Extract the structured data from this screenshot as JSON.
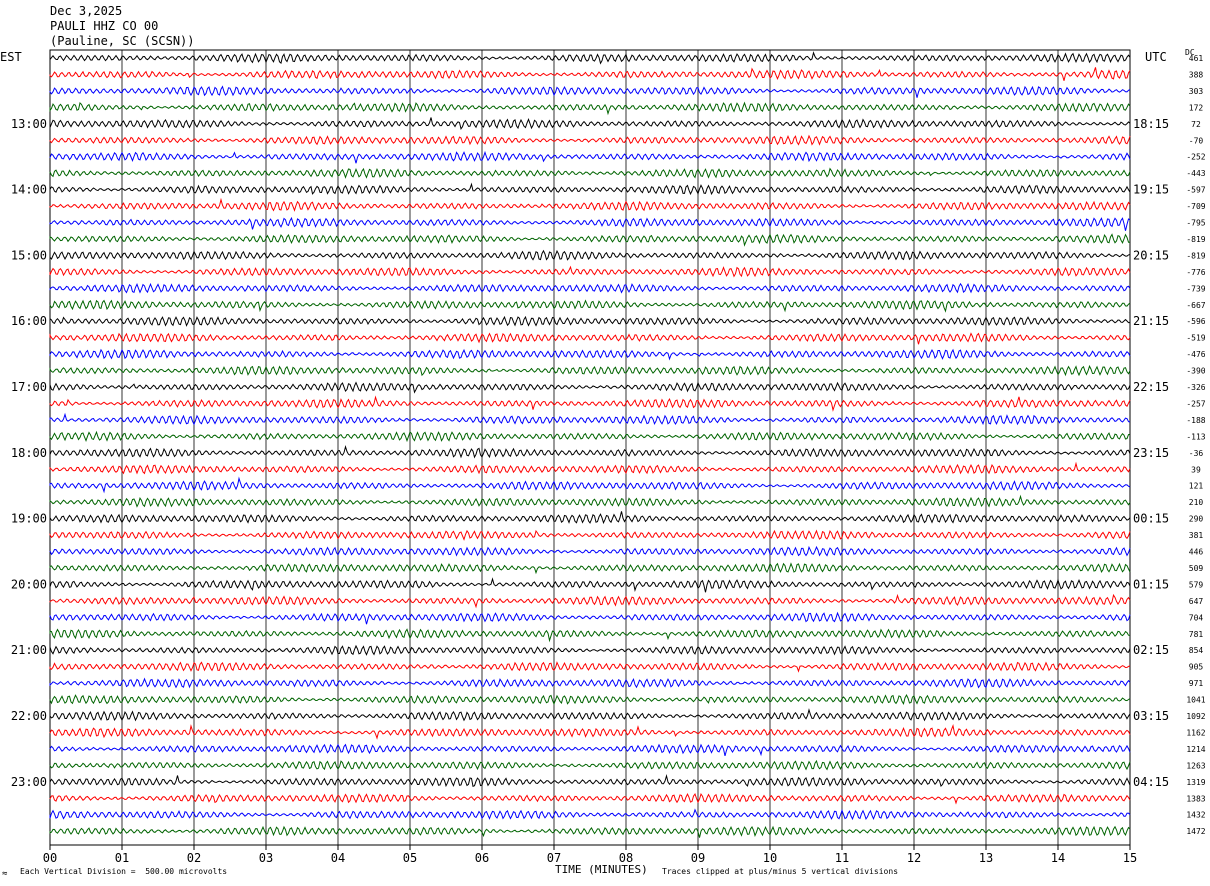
{
  "header": {
    "date": "Dec 3,2025",
    "station": "PAULI HHZ CO 00",
    "location": "(Pauline, SC (SCSN))"
  },
  "tz_left": "EST",
  "tz_right": "UTC",
  "dc_label": "DC",
  "footer": {
    "scale": "Each Vertical Division =  500.00 microvolts",
    "xlabel": "TIME (MINUTES)",
    "clip": "Traces clipped at plus/minus 5 vertical divisions"
  },
  "colors": {
    "trace_cycle": [
      "#000000",
      "#ff0000",
      "#0000ff",
      "#006400"
    ],
    "grid": "#000000"
  },
  "chart_data": {
    "type": "line",
    "title": "PAULI HHZ CO 00",
    "xlabel": "TIME (MINUTES)",
    "x_ticks": [
      "00",
      "01",
      "02",
      "03",
      "04",
      "05",
      "06",
      "07",
      "08",
      "09",
      "10",
      "11",
      "12",
      "13",
      "14",
      "15"
    ],
    "xlim": [
      0,
      15
    ],
    "trace_count": 48,
    "est_labels": [
      "13:00",
      "14:00",
      "15:00",
      "16:00",
      "17:00",
      "18:00",
      "19:00",
      "20:00",
      "21:00",
      "22:00",
      "23:00"
    ],
    "utc_labels": [
      "18:15",
      "19:15",
      "20:15",
      "21:15",
      "22:15",
      "23:15",
      "00:15",
      "01:15",
      "02:15",
      "03:15",
      "04:15"
    ],
    "dc_offsets": [
      "461",
      "388",
      "303",
      "172",
      "72",
      "-70",
      "-252",
      "-443",
      "-597",
      "-709",
      "-795",
      "-819",
      "-819",
      "-776",
      "-739",
      "-667",
      "-596",
      "-519",
      "-476",
      "-390",
      "-326",
      "-257",
      "-188",
      "-113",
      "-36",
      "39",
      "121",
      "210",
      "290",
      "381",
      "446",
      "509",
      "579",
      "647",
      "704",
      "781",
      "854",
      "905",
      "971",
      "1041",
      "1092",
      "1162",
      "1214",
      "1263",
      "1319",
      "1383",
      "1432",
      "1472"
    ]
  }
}
